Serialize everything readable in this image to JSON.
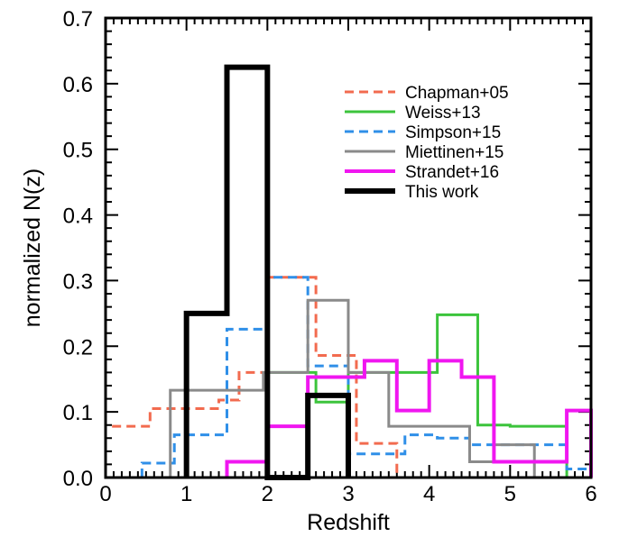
{
  "chart_data": {
    "type": "histogram-step",
    "xlabel": "Redshift",
    "ylabel": "normalized N(z)",
    "xlim": [
      0,
      6
    ],
    "ylim": [
      0,
      0.7
    ],
    "x_ticks": [
      "0",
      "1",
      "2",
      "3",
      "4",
      "5",
      "6"
    ],
    "y_ticks": [
      "0.0",
      "0.1",
      "0.2",
      "0.3",
      "0.4",
      "0.5",
      "0.6",
      "0.7"
    ],
    "grid": false,
    "legend_position": "top-right",
    "series": [
      {
        "name": "Chapman+05",
        "color": "#f26b4f",
        "dash": "dashed",
        "width": 3,
        "edges": [
          0.0,
          0.55,
          0.85,
          1.4,
          1.65,
          2.0,
          2.1,
          2.6,
          3.1,
          3.2,
          3.6
        ],
        "values": [
          0.078,
          0.105,
          0.105,
          0.118,
          0.16,
          0.305,
          0.305,
          0.186,
          0.052,
          0.052
        ]
      },
      {
        "name": "Weiss+13",
        "color": "#3cc43c",
        "dash": "solid",
        "width": 3,
        "edges": [
          2.0,
          2.6,
          3.0,
          3.6,
          4.1,
          4.6,
          5.0,
          5.2,
          5.7
        ],
        "values": [
          0.16,
          0.115,
          0.16,
          0.16,
          0.248,
          0.08,
          0.078,
          0.078
        ]
      },
      {
        "name": "Simpson+15",
        "color": "#2f8fe8",
        "dash": "dashed",
        "width": 3,
        "edges": [
          0.45,
          0.85,
          1.5,
          2.0,
          2.5,
          3.0,
          3.3,
          3.7,
          4.1,
          4.5,
          5.0,
          5.7,
          6.0
        ],
        "values": [
          0.022,
          0.065,
          0.226,
          0.305,
          0.17,
          0.036,
          0.036,
          0.065,
          0.06,
          0.05,
          0.05,
          0.013
        ]
      },
      {
        "name": "Miettinen+15",
        "color": "#8a8a8a",
        "dash": "solid",
        "width": 3,
        "edges": [
          0.8,
          1.95,
          2.5,
          3.0,
          3.5,
          4.0,
          4.5,
          4.8,
          5.3
        ],
        "values": [
          0.133,
          0.16,
          0.27,
          0.16,
          0.078,
          0.078,
          0.024,
          0.05
        ]
      },
      {
        "name": "Strandet+16",
        "color": "#f016f0",
        "dash": "solid",
        "width": 4,
        "edges": [
          1.5,
          2.0,
          2.5,
          3.2,
          3.6,
          4.0,
          4.4,
          4.8,
          5.3,
          5.7,
          6.0
        ],
        "values": [
          0.024,
          0.078,
          0.153,
          0.178,
          0.102,
          0.178,
          0.153,
          0.024,
          0.024,
          0.102
        ]
      },
      {
        "name": "This work",
        "color": "#000000",
        "dash": "solid",
        "width": 6,
        "edges": [
          1.0,
          1.5,
          2.0,
          2.5,
          3.0
        ],
        "values": [
          0.25,
          0.625,
          0.0,
          0.125
        ]
      }
    ]
  }
}
